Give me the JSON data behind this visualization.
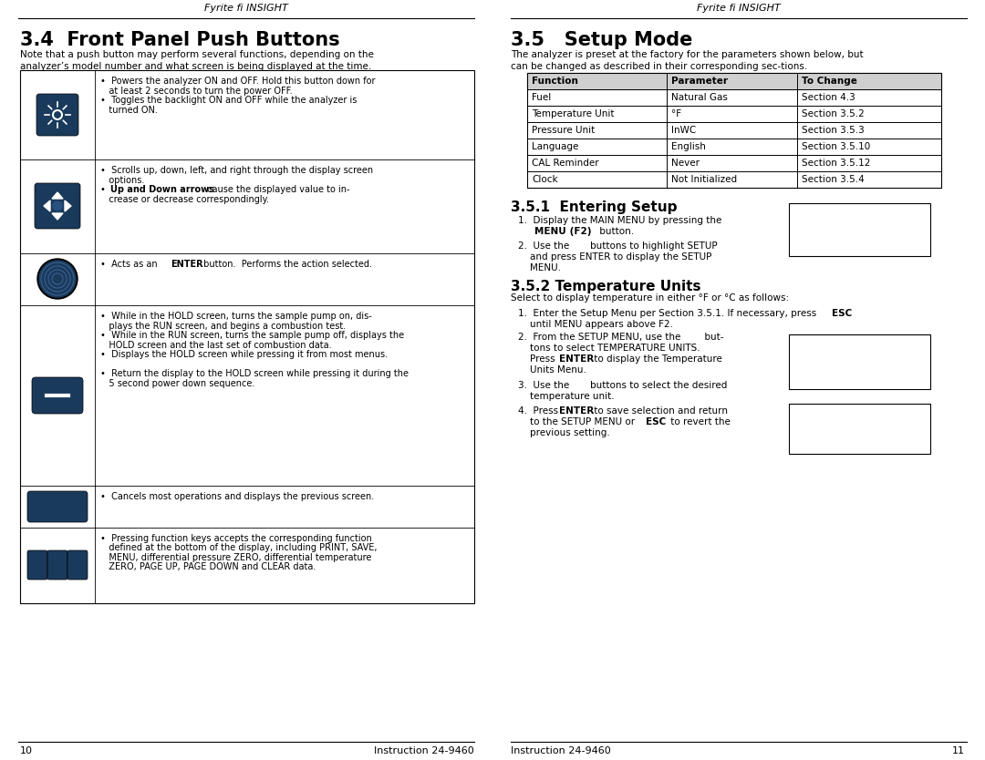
{
  "bg_color": "#ffffff",
  "header_text": "Fyrite fi INSIGHT",
  "left_page_num": "10",
  "right_page_num": "11",
  "footer_text": "Instruction 24-9460",
  "section_34_title": "3.4  Front Panel Push Buttons",
  "section_34_intro": "Note that a push button may perform several functions, depending on the\nanalyzer’s model number and what screen is being displayed at the time.",
  "section_35_title": "3.5   Setup Mode",
  "section_35_intro": "The analyzer is preset at the factory for the parameters shown below, but\ncan be changed as described in their corresponding sec­tions.",
  "table_headers": [
    "Function",
    "Parameter",
    "To Change"
  ],
  "table_rows": [
    [
      "Fuel",
      "Natural Gas",
      "Section 4.3"
    ],
    [
      "Temperature Unit",
      "°F",
      "Section 3.5.2"
    ],
    [
      "Pressure Unit",
      "InWC",
      "Section 3.5.3"
    ],
    [
      "Language",
      "English",
      "Section 3.5.10"
    ],
    [
      "CAL Reminder",
      "Never",
      "Section 3.5.12"
    ],
    [
      "Clock",
      "Not Initialized",
      "Section 3.5.4"
    ]
  ],
  "table_header_bg": "#d0d0d0",
  "icon_dark_color": "#1a3a5c",
  "bullet": "•"
}
